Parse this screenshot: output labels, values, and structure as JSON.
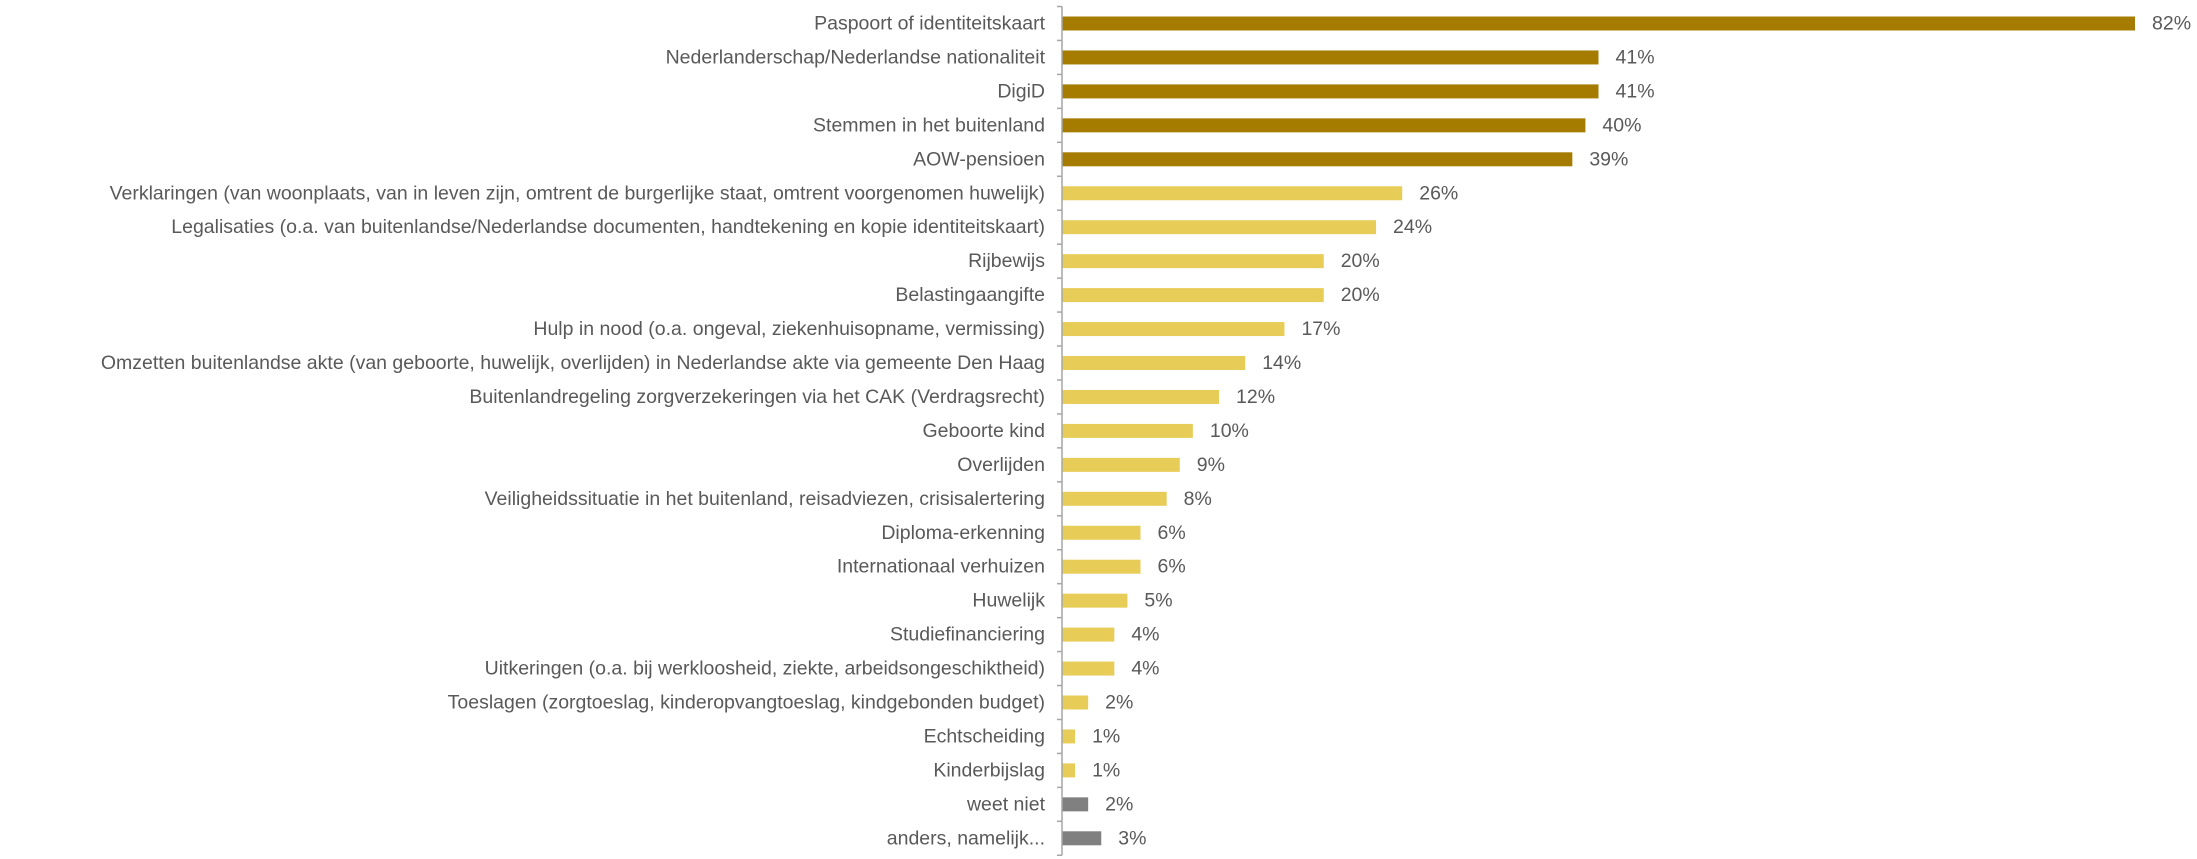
{
  "chart_data": {
    "type": "bar",
    "orientation": "horizontal",
    "categories": [
      "Paspoort of identiteitskaart",
      "Nederlanderschap/Nederlandse nationaliteit",
      "DigiD",
      "Stemmen in het buitenland",
      "AOW-pensioen",
      "Verklaringen (van woonplaats, van in leven zijn, omtrent de burgerlijke staat, omtrent voorgenomen huwelijk)",
      "Legalisaties (o.a. van buitenlandse/Nederlandse documenten, handtekening en kopie identiteitskaart)",
      "Rijbewijs",
      "Belastingaangifte",
      "Hulp in nood (o.a. ongeval, ziekenhuisopname, vermissing)",
      "Omzetten buitenlandse akte (van geboorte, huwelijk, overlijden) in Nederlandse akte via gemeente Den Haag",
      "Buitenlandregeling zorgverzekeringen via het CAK (Verdragsrecht)",
      "Geboorte kind",
      "Overlijden",
      "Veiligheidssituatie in het buitenland, reisadviezen, crisisalertering",
      "Diploma-erkenning",
      "Internationaal verhuizen",
      "Huwelijk",
      "Studiefinanciering",
      "Uitkeringen (o.a. bij werkloosheid, ziekte, arbeidsongeschiktheid)",
      "Toeslagen (zorgtoeslag, kinderopvangtoeslag, kindgebonden budget)",
      "Echtscheiding",
      "Kinderbijslag",
      "weet niet",
      "anders, namelijk..."
    ],
    "values": [
      82,
      41,
      41,
      40,
      39,
      26,
      24,
      20,
      20,
      17,
      14,
      12,
      10,
      9,
      8,
      6,
      6,
      5,
      4,
      4,
      2,
      1,
      1,
      2,
      3
    ],
    "value_labels": [
      "82%",
      "41%",
      "41%",
      "40%",
      "39%",
      "26%",
      "24%",
      "20%",
      "20%",
      "17%",
      "14%",
      "12%",
      "10%",
      "9%",
      "8%",
      "6%",
      "6%",
      "5%",
      "4%",
      "4%",
      "2%",
      "1%",
      "1%",
      "2%",
      "3%"
    ],
    "bar_colors": [
      "#A67C00",
      "#A67C00",
      "#A67C00",
      "#A67C00",
      "#A67C00",
      "#E8CC58",
      "#E8CC58",
      "#E8CC58",
      "#E8CC58",
      "#E8CC58",
      "#E8CC58",
      "#E8CC58",
      "#E8CC58",
      "#E8CC58",
      "#E8CC58",
      "#E8CC58",
      "#E8CC58",
      "#E8CC58",
      "#E8CC58",
      "#E8CC58",
      "#E8CC58",
      "#E8CC58",
      "#E8CC58",
      "#808080",
      "#808080"
    ],
    "label_color": "#595959",
    "axis_color": "#A6A6A6",
    "xlim": [
      0,
      82
    ],
    "unit": "%",
    "grid": false,
    "legend": "none",
    "title": "",
    "xlabel": "",
    "ylabel": ""
  }
}
